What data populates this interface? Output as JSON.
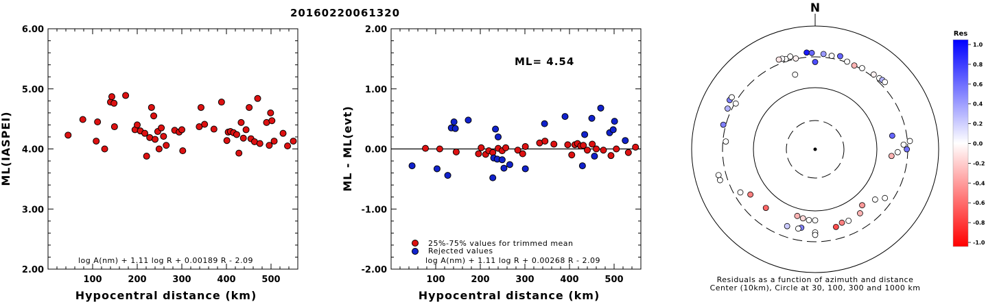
{
  "title": "20160220061320",
  "colors": {
    "accepted": "#dd1111",
    "rejected": "#1122cc",
    "neg_end": "#ff0000",
    "pos_end": "#0000ff"
  },
  "chart_data": [
    {
      "type": "scatter",
      "xlabel": "Hypocentral distance (km)",
      "ylabel": "ML(IASPEI)",
      "xlim": [
        0,
        560
      ],
      "ylim": [
        2.0,
        6.0
      ],
      "xticks": [
        "100",
        "200",
        "300",
        "400",
        "500"
      ],
      "yticks": [
        "2.00",
        "3.00",
        "4.00",
        "5.00",
        "6.00"
      ],
      "formula": "log A(nm) + 1.11 log R + 0.00189 R - 2.09",
      "series": [
        {
          "points": [
            [
              45,
              4.23
            ],
            [
              78,
              4.49
            ],
            [
              108,
              4.13
            ],
            [
              111,
              4.45
            ],
            [
              127,
              4.0
            ],
            [
              140,
              4.78
            ],
            [
              143,
              4.87
            ],
            [
              148,
              4.76
            ],
            [
              149,
              4.37
            ],
            [
              174,
              4.89
            ],
            [
              195,
              4.32
            ],
            [
              200,
              4.4
            ],
            [
              207,
              4.3
            ],
            [
              217,
              4.26
            ],
            [
              221,
              3.88
            ],
            [
              228,
              4.19
            ],
            [
              232,
              4.69
            ],
            [
              237,
              4.55
            ],
            [
              240,
              4.16
            ],
            [
              246,
              4.29
            ],
            [
              249,
              4.0
            ],
            [
              254,
              4.35
            ],
            [
              259,
              4.21
            ],
            [
              265,
              4.06
            ],
            [
              284,
              4.31
            ],
            [
              294,
              4.28
            ],
            [
              300,
              4.32
            ],
            [
              302,
              3.97
            ],
            [
              339,
              4.37
            ],
            [
              343,
              4.69
            ],
            [
              351,
              4.41
            ],
            [
              372,
              4.33
            ],
            [
              389,
              4.78
            ],
            [
              401,
              4.14
            ],
            [
              404,
              4.28
            ],
            [
              409,
              4.29
            ],
            [
              416,
              4.27
            ],
            [
              423,
              4.24
            ],
            [
              428,
              3.93
            ],
            [
              433,
              4.44
            ],
            [
              438,
              4.18
            ],
            [
              444,
              4.32
            ],
            [
              451,
              4.69
            ],
            [
              455,
              4.17
            ],
            [
              463,
              4.12
            ],
            [
              470,
              4.84
            ],
            [
              475,
              4.09
            ],
            [
              490,
              4.44
            ],
            [
              496,
              4.06
            ],
            [
              499,
              4.6
            ],
            [
              502,
              4.47
            ],
            [
              507,
              4.13
            ],
            [
              527,
              4.26
            ],
            [
              537,
              4.05
            ],
            [
              550,
              4.13
            ]
          ]
        }
      ]
    },
    {
      "type": "scatter",
      "xlabel": "Hypocentral distance (km)",
      "ylabel": "ML - ML(evt)",
      "xlim": [
        0,
        560
      ],
      "ylim": [
        -2.0,
        2.0
      ],
      "xticks": [
        "100",
        "200",
        "300",
        "400",
        "500"
      ],
      "yticks": [
        "-2.00",
        "-1.00",
        "0.00",
        "1.00",
        "2.00"
      ],
      "reference_line": 0,
      "annotation": "ML= 4.54",
      "formula": "log A(nm) + 1.11 log R + 0.00268 R - 2.09",
      "series": [
        {
          "name": "25%-75% values for trimmed mean",
          "points": [
            [
              77,
              0.01
            ],
            [
              109,
              0.0
            ],
            [
              146,
              -0.05
            ],
            [
              196,
              -0.08
            ],
            [
              202,
              0.02
            ],
            [
              212,
              -0.09
            ],
            [
              219,
              -0.03
            ],
            [
              228,
              -0.06
            ],
            [
              240,
              0.01
            ],
            [
              249,
              -0.03
            ],
            [
              257,
              0.02
            ],
            [
              284,
              -0.02
            ],
            [
              295,
              -0.08
            ],
            [
              301,
              0.04
            ],
            [
              333,
              0.1
            ],
            [
              345,
              0.13
            ],
            [
              365,
              0.08
            ],
            [
              396,
              0.07
            ],
            [
              405,
              -0.1
            ],
            [
              412,
              0.07
            ],
            [
              418,
              0.09
            ],
            [
              425,
              0.05
            ],
            [
              431,
              0.06
            ],
            [
              440,
              -0.02
            ],
            [
              451,
              0.08
            ],
            [
              460,
              0.0
            ],
            [
              476,
              -0.02
            ],
            [
              493,
              -0.11
            ],
            [
              505,
              0.0
            ],
            [
              532,
              -0.06
            ],
            [
              548,
              0.03
            ]
          ]
        },
        {
          "name": "Rejected values",
          "points": [
            [
              47,
              -0.28
            ],
            [
              103,
              -0.33
            ],
            [
              127,
              -0.44
            ],
            [
              135,
              0.35
            ],
            [
              141,
              0.45
            ],
            [
              144,
              0.34
            ],
            [
              173,
              0.48
            ],
            [
              228,
              -0.48
            ],
            [
              230,
              -0.15
            ],
            [
              234,
              0.33
            ],
            [
              238,
              -0.17
            ],
            [
              240,
              0.2
            ],
            [
              249,
              -0.18
            ],
            [
              253,
              -0.32
            ],
            [
              266,
              -0.26
            ],
            [
              301,
              -0.33
            ],
            [
              344,
              0.42
            ],
            [
              390,
              0.54
            ],
            [
              429,
              -0.28
            ],
            [
              434,
              0.24
            ],
            [
              450,
              0.51
            ],
            [
              456,
              -0.12
            ],
            [
              470,
              0.68
            ],
            [
              490,
              0.27
            ],
            [
              498,
              0.32
            ],
            [
              501,
              0.46
            ],
            [
              525,
              0.14
            ]
          ]
        }
      ]
    },
    {
      "type": "scatter",
      "subtype": "polar",
      "north_label": "N",
      "caption_1": "Residuals as a function of azimuth and distance",
      "caption_2": "Center (10km), Circle at 30, 100, 300 and 1000 km",
      "colorbar": {
        "title": "Res",
        "ticks": [
          "1.0",
          "0.8",
          "0.6",
          "0.4",
          "0.2",
          "0.0",
          "-0.2",
          "-0.4",
          "-0.6",
          "-0.8",
          "-1.0"
        ]
      },
      "stations": [
        {
          "az": 342,
          "d": 330,
          "res": 0.0
        },
        {
          "az": 345,
          "d": 345,
          "res": 0.0
        },
        {
          "az": 340,
          "d": 350,
          "res": 0.02
        },
        {
          "az": 338,
          "d": 355,
          "res": -0.1
        },
        {
          "az": 348,
          "d": 305,
          "res": -0.05
        },
        {
          "az": 355,
          "d": 360,
          "res": 0.9
        },
        {
          "az": 358,
          "d": 350,
          "res": 0.6
        },
        {
          "az": 5,
          "d": 340,
          "res": 0.4
        },
        {
          "az": 10,
          "d": 330,
          "res": 0.0
        },
        {
          "az": 15,
          "d": 350,
          "res": 0.6
        },
        {
          "az": 20,
          "d": 310,
          "res": 0.0
        },
        {
          "az": 25,
          "d": 300,
          "res": -0.3
        },
        {
          "az": 30,
          "d": 315,
          "res": 0.0
        },
        {
          "az": 38,
          "d": 330,
          "res": -0.05
        },
        {
          "az": 42,
          "d": 340,
          "res": 0.0
        },
        {
          "az": 44,
          "d": 350,
          "res": 0.3
        },
        {
          "az": 46,
          "d": 355,
          "res": 0.0
        },
        {
          "az": 0,
          "d": 250,
          "res": 0.7
        },
        {
          "az": 345,
          "d": 175,
          "res": 0.0
        },
        {
          "az": 300,
          "d": 380,
          "res": 0.5
        },
        {
          "az": 302,
          "d": 375,
          "res": 0.0
        },
        {
          "az": 295,
          "d": 350,
          "res": 0.3
        },
        {
          "az": 300,
          "d": 290,
          "res": 0.0
        },
        {
          "az": 285,
          "d": 330,
          "res": 0.5
        },
        {
          "az": 275,
          "d": 270,
          "res": 0.0
        },
        {
          "az": 80,
          "d": 180,
          "res": 0.6
        },
        {
          "az": 92,
          "d": 210,
          "res": 0.0
        },
        {
          "az": 95,
          "d": 170,
          "res": -0.3
        },
        {
          "az": 255,
          "d": 400,
          "res": 0.0
        },
        {
          "az": 252,
          "d": 400,
          "res": 0.0
        },
        {
          "az": 240,
          "d": 240,
          "res": 0.0
        },
        {
          "az": 235,
          "d": 185,
          "res": -0.5
        },
        {
          "az": 220,
          "d": 170,
          "res": -0.6
        },
        {
          "az": 195,
          "d": 130,
          "res": -0.3
        },
        {
          "az": 190,
          "d": 135,
          "res": -0.15
        },
        {
          "az": 185,
          "d": 140,
          "res": 0.0
        },
        {
          "az": 180,
          "d": 140,
          "res": 0.0
        },
        {
          "az": 145,
          "d": 180,
          "res": -0.3
        },
        {
          "az": 140,
          "d": 150,
          "res": -0.4
        },
        {
          "az": 160,
          "d": 180,
          "res": -0.5
        },
        {
          "az": 155,
          "d": 185,
          "res": 0.0
        },
        {
          "az": 165,
          "d": 195,
          "res": -0.7
        },
        {
          "az": 190,
          "d": 190,
          "res": 0.5
        },
        {
          "az": 192,
          "d": 200,
          "res": 0.0
        },
        {
          "az": 200,
          "d": 205,
          "res": 0.2
        },
        {
          "az": 180,
          "d": 215,
          "res": 0.0
        },
        {
          "az": 180,
          "d": 235,
          "res": 0.0
        },
        {
          "az": 130,
          "d": 180,
          "res": 0.0
        },
        {
          "az": 125,
          "d": 230,
          "res": 0.0
        },
        {
          "az": 90,
          "d": 290,
          "res": 0.55
        },
        {
          "az": 85,
          "d": 330,
          "res": 0.0
        },
        {
          "az": 87,
          "d": 260,
          "res": 0.0
        }
      ]
    }
  ]
}
